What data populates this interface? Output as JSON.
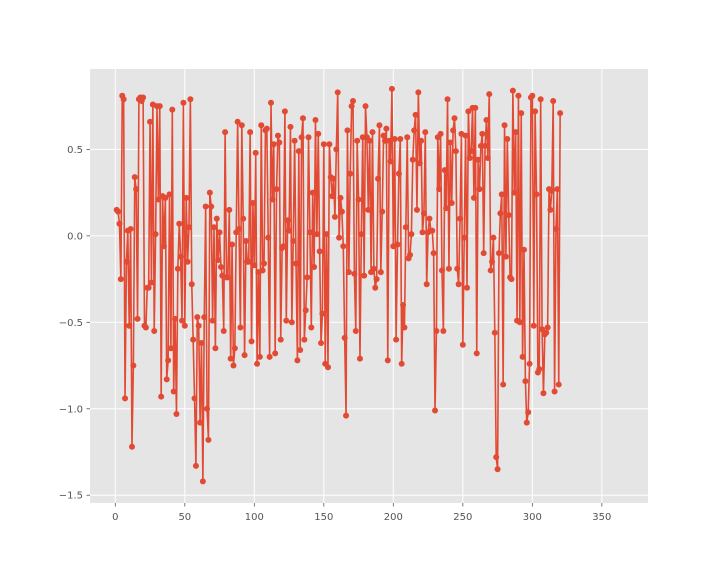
{
  "chart_data": {
    "type": "line",
    "title": "",
    "xlabel": "",
    "ylabel": "",
    "xlim": [
      -18.2,
      383.2
    ],
    "ylim": [
      -1.545,
      0.965
    ],
    "grid": true,
    "x_ticks": [
      0,
      50,
      100,
      150,
      200,
      250,
      300,
      350
    ],
    "y_ticks": [
      -1.5,
      -1.0,
      -0.5,
      0.0,
      0.5
    ],
    "x_tick_labels": [
      "0",
      "50",
      "100",
      "150",
      "200",
      "250",
      "300",
      "350"
    ],
    "y_tick_labels": [
      "−1.5",
      "−1.0",
      "−0.5",
      "0.0",
      "0.5"
    ],
    "colors": {
      "background": "#e5e5e5",
      "grid": "#ffffff",
      "series": "#e24a33",
      "axis_text": "#555555"
    },
    "series": [
      {
        "name": "",
        "x_start": 1,
        "values": [
          0.15,
          0.14,
          0.07,
          -0.25,
          0.81,
          0.79,
          -0.94,
          -0.15,
          0.03,
          -0.52,
          0.04,
          -1.22,
          -0.75,
          0.34,
          0.27,
          -0.48,
          0.79,
          0.8,
          0.78,
          0.8,
          -0.52,
          -0.53,
          -0.3,
          -0.3,
          0.66,
          -0.27,
          0.76,
          -0.55,
          0.01,
          0.75,
          0.21,
          0.75,
          -0.93,
          0.23,
          -0.06,
          0.22,
          -0.83,
          -0.72,
          0.24,
          -0.65,
          0.73,
          -0.9,
          -0.48,
          -1.03,
          -0.19,
          0.07,
          -0.12,
          -0.49,
          0.77,
          -0.52,
          0.22,
          -0.15,
          0.05,
          0.79,
          -0.28,
          -0.6,
          -0.94,
          -1.33,
          -0.47,
          -0.52,
          -1.08,
          -0.62,
          -1.42,
          -0.47,
          0.17,
          -1.0,
          -1.18,
          0.25,
          0.17,
          -0.49,
          0.05,
          -0.65,
          0.1,
          -0.14,
          0.02,
          -0.18,
          -0.23,
          -0.55,
          0.6,
          -0.24,
          -0.24,
          0.15,
          -0.71,
          -0.05,
          -0.75,
          -0.65,
          0.02,
          0.66,
          0.04,
          -0.53,
          0.64,
          0.1,
          -0.69,
          -0.03,
          -0.15,
          -0.15,
          0.6,
          -0.61,
          0.19,
          -0.17,
          0.48,
          -0.74,
          -0.21,
          -0.7,
          0.64,
          -0.2,
          -0.16,
          0.61,
          0.62,
          -0.01,
          -0.7,
          0.77,
          0.21,
          0.53,
          -0.68,
          0.27,
          0.58,
          0.54,
          -0.6,
          -0.07,
          -0.06,
          0.72,
          -0.49,
          0.09,
          0.03,
          0.63,
          -0.5,
          -0.03,
          0.55,
          -0.16,
          -0.72,
          0.49,
          -0.66,
          0.57,
          0.68,
          -0.6,
          -0.43,
          -0.24,
          0.57,
          0.02,
          -0.53,
          0.25,
          -0.18,
          0.67,
          0.01,
          0.59,
          -0.09,
          -0.62,
          -0.45,
          0.53,
          -0.74,
          0.01,
          -0.76,
          0.53,
          0.34,
          0.23,
          0.33,
          0.11,
          0.5,
          0.83,
          -0.01,
          0.22,
          0.14,
          -0.06,
          -0.59,
          -1.04,
          0.61,
          -0.21,
          0.36,
          0.75,
          0.78,
          -0.22,
          -0.55,
          0.55,
          0.21,
          -0.71,
          0.01,
          0.57,
          -0.23,
          0.75,
          0.57,
          0.15,
          0.55,
          -0.21,
          0.6,
          -0.19,
          -0.3,
          -0.25,
          0.33,
          0.64,
          -0.21,
          0.14,
          0.58,
          0.55,
          0.62,
          -0.72,
          0.55,
          0.43,
          0.85,
          -0.06,
          0.56,
          -0.6,
          -0.05,
          0.36,
          0.56,
          -0.74,
          -0.4,
          -0.53,
          0.05,
          0.57,
          -0.13,
          -0.11,
          0.01,
          0.44,
          0.61,
          0.7,
          0.15,
          0.83,
          0.42,
          0.55,
          0.02,
          0.13,
          0.6,
          -0.28,
          0.02,
          0.1,
          0.03,
          0.03,
          -0.1,
          -1.01,
          -0.55,
          0.57,
          0.27,
          0.59,
          -0.2,
          -0.55,
          0.38,
          0.16,
          0.79,
          -0.19,
          0.54,
          0.19,
          0.61,
          0.68,
          0.49,
          -0.19,
          -0.28,
          0.1,
          0.59,
          -0.63,
          -0.01,
          0.58,
          -0.3,
          0.72,
          0.45,
          0.49,
          0.74,
          0.22,
          0.74,
          -0.68,
          0.44,
          0.27,
          0.52,
          0.59,
          -0.1,
          0.52,
          0.67,
          0.45,
          0.82,
          -0.2,
          -0.15,
          -0.01,
          -0.56,
          -1.28,
          -1.35,
          -0.1,
          0.13,
          0.24,
          -0.86,
          0.64,
          -0.12,
          0.56,
          0.12,
          -0.24,
          -0.25,
          0.84,
          0.25,
          0.6,
          -0.49,
          0.81,
          -0.5,
          0.71,
          -0.7,
          -0.08,
          -0.84,
          -1.08,
          -1.02,
          -0.74,
          0.8,
          0.81,
          -0.52,
          0.72,
          0.24,
          -0.79,
          -0.77,
          0.79,
          -0.54,
          -0.91,
          -0.57,
          -0.56,
          -0.53,
          0.27,
          0.15,
          0.26,
          0.78,
          -0.9,
          0.04,
          0.27,
          -0.86,
          0.71
        ]
      }
    ]
  }
}
